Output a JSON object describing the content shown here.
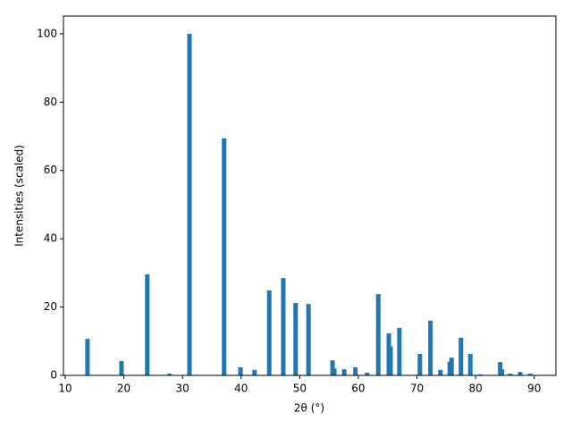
{
  "chart_data": {
    "type": "bar",
    "xlabel": "2θ (°)",
    "ylabel": "Intensities (scaled)",
    "color": "#1f77b4",
    "x": [
      13.8,
      19.6,
      24.0,
      27.8,
      31.2,
      37.1,
      39.9,
      42.3,
      44.8,
      47.2,
      49.3,
      51.5,
      55.6,
      55.9,
      57.6,
      59.5,
      61.5,
      63.4,
      65.2,
      65.5,
      67.0,
      70.5,
      72.3,
      74.0,
      75.6,
      75.9,
      77.5,
      79.1,
      80.8,
      84.2,
      84.5,
      85.9,
      87.6,
      89.3
    ],
    "values": [
      10.7,
      4.2,
      29.6,
      0.5,
      100,
      69.4,
      2.4,
      1.6,
      24.9,
      28.5,
      21.2,
      20.9,
      4.4,
      2.0,
      1.8,
      2.4,
      0.8,
      23.8,
      12.3,
      8.5,
      13.9,
      6.3,
      16.0,
      1.6,
      4.0,
      5.2,
      11.0,
      6.3,
      0.3,
      3.9,
      1.8,
      0.5,
      1.0,
      0.5
    ],
    "xlim": [
      9.7,
      93.7
    ],
    "ylim": [
      0,
      105.2
    ],
    "xticks": [
      10,
      20,
      30,
      40,
      50,
      60,
      70,
      80,
      90
    ],
    "yticks": [
      0,
      20,
      40,
      60,
      80,
      100
    ]
  }
}
